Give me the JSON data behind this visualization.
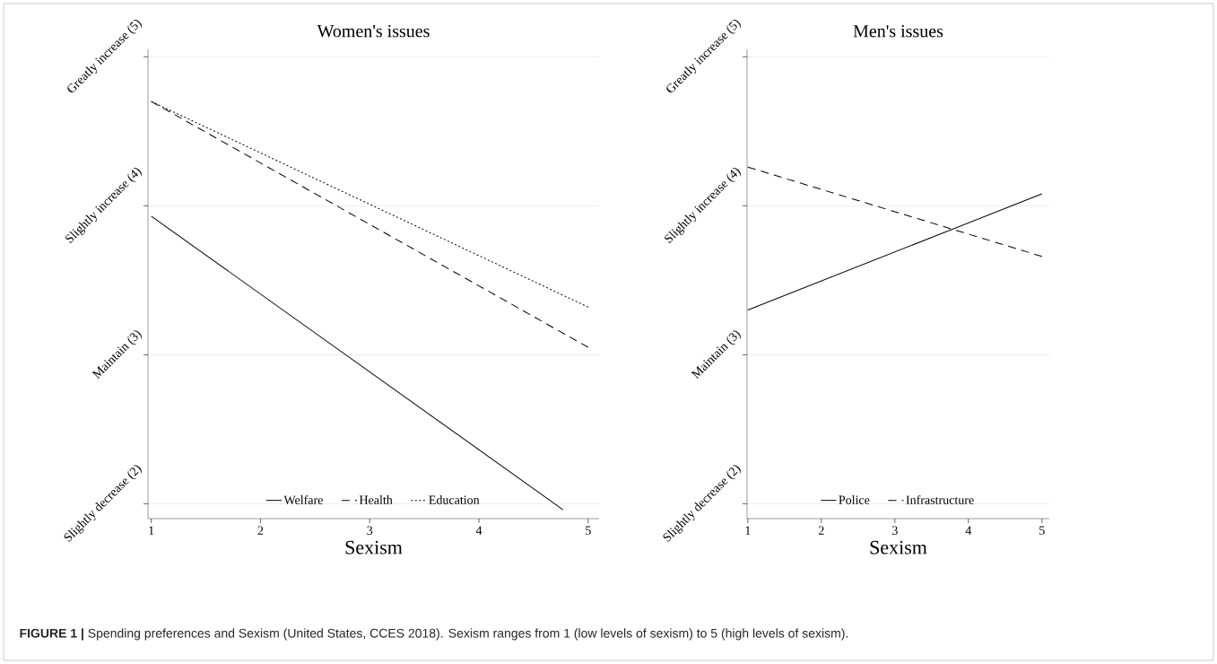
{
  "chart_data": [
    {
      "type": "line",
      "title": "Women's issues",
      "xlabel": "Sexism",
      "series": [
        {
          "name": "Welfare",
          "color": "#000000",
          "line_style": "solid",
          "x": [
            1,
            4.77
          ],
          "values": [
            3.93,
            1.96
          ]
        },
        {
          "name": "Health",
          "color": "#000000",
          "line_style": "dashed",
          "x": [
            1,
            5
          ],
          "values": [
            4.7,
            3.05
          ]
        },
        {
          "name": "Education",
          "color": "#000000",
          "line_style": "dotted",
          "x": [
            1,
            5
          ],
          "values": [
            4.7,
            3.32
          ]
        }
      ],
      "xlim": [
        0.97,
        5.1
      ],
      "ylim": [
        1.9,
        5.05
      ],
      "xticks": [
        1,
        2,
        3,
        4,
        5
      ],
      "yticks": [
        {
          "value": 2,
          "label": "Slightly decrease (2)"
        },
        {
          "value": 3,
          "label": "Maintain (3)"
        },
        {
          "value": 4,
          "label": "Slightly increase (4)"
        },
        {
          "value": 5,
          "label": "Greatly increase (5)"
        }
      ],
      "grid": "y",
      "legend": "bottom",
      "annotations": [
        "**FIGURE 1 |** Spending preferences and Sexism (United States, CCES 2018). Sexism ranges from 1 (low levels of sexism) to 5 (high levels of sexism)."
      ]
    },
    {
      "type": "line",
      "title": "Men's issues",
      "xlabel": "Sexism",
      "series": [
        {
          "name": "Police",
          "color": "#000000",
          "line_style": "solid",
          "x": [
            1,
            5
          ],
          "values": [
            3.3,
            4.08
          ]
        },
        {
          "name": "Infrastructure",
          "color": "#000000",
          "line_style": "dashed",
          "x": [
            1,
            5
          ],
          "values": [
            4.26,
            3.66
          ]
        }
      ],
      "xlim": [
        0.99,
        5.1
      ],
      "ylim": [
        1.9,
        5.05
      ],
      "xticks": [
        1,
        2,
        3,
        4,
        5
      ],
      "yticks": [
        {
          "value": 2,
          "label": "Slightly decrease (2)"
        },
        {
          "value": 3,
          "label": "Maintain (3)"
        },
        {
          "value": 4,
          "label": "Slightly increase (4)"
        },
        {
          "value": 5,
          "label": "Greatly increase (5)"
        }
      ],
      "grid": "y",
      "legend": "bottom"
    }
  ]
}
